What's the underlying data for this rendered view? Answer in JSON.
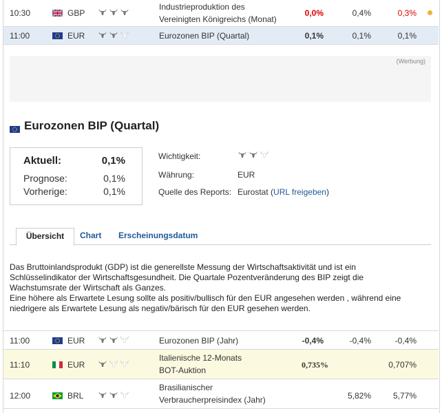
{
  "rows_top": [
    {
      "time": "10:30",
      "currency": "GBP",
      "flag": "gb-flag",
      "importance": 3,
      "event_line1": "Industrieproduktion des",
      "event_line2": "Vereinigten Königreichs (Monat)",
      "actual": "0,0%",
      "forecast": "0,4%",
      "previous": "0,3%",
      "actual_color": "#dd0000",
      "previous_color": "#dd0000",
      "indicator": "orange-dot"
    },
    {
      "time": "11:00",
      "currency": "EUR",
      "flag": "eu-flag",
      "importance": 2,
      "event_line1": "Eurozonen BIP (Quartal)",
      "actual": "0,1%",
      "forecast": "0,1%",
      "previous": "0,1%"
    }
  ],
  "ad": {
    "label": "(Werbung)"
  },
  "detail": {
    "title": "Eurozonen BIP (Quartal)",
    "aktuell_label": "Aktuell:",
    "aktuell_value": "0,1%",
    "prognose_label": "Prognose:",
    "prognose_value": "0,1%",
    "vorherige_label": "Vorherige:",
    "vorherige_value": "0,1%",
    "wichtigkeit_label": "Wichtigkeit:",
    "importance": 2,
    "waehrung_label": "Währung:",
    "waehrung_value": "EUR",
    "quelle_label": "Quelle des Reports:",
    "quelle_value": "Eurostat (",
    "quelle_link": "URL freigeben",
    "quelle_close": ")"
  },
  "tabs": [
    "Übersicht",
    "Chart",
    "Erscheinungsdatum"
  ],
  "description": [
    "Das Bruttoinlandsprodukt (GDP) ist die generellste Messung der Wirtschaftsaktivität und ist ein",
    "Schlüsselindikator der Wirtschaftsgesundheit. Die Quartale Pozentveränderung des BIP zeigt die",
    "Wachstumsrate der Wirtschaft als Ganzes.",
    "Eine höhere als Erwartete Lesung sollte als positiv/bullisch für den EUR angesehen werden , während eine",
    "niedrigere als Erwartete Lesung als negativ/bärisch für den EUR gesehen werden."
  ],
  "rows_bottom": [
    {
      "time": "11:00",
      "currency": "EUR",
      "flag": "eu-flag",
      "importance": 2,
      "event_line1": "Eurozonen BIP (Jahr)",
      "actual": "-0,4%",
      "forecast": "-0,4%",
      "previous": "-0,4%"
    },
    {
      "time": "11:10",
      "currency": "EUR",
      "flag": "it-flag",
      "importance": 1,
      "event_line1": "Italienische 12-Monats",
      "event_line2": "BOT-Auktion",
      "actual": "0,735%",
      "forecast": "",
      "previous": "0,707%"
    },
    {
      "time": "12:00",
      "currency": "BRL",
      "flag": "br-flag",
      "importance": 2,
      "event_line1": "Brasilianischer",
      "event_line2": "Verbraucherpreisindex (Jahr)",
      "actual": "",
      "forecast": "5,82%",
      "previous": "5,77%"
    }
  ]
}
